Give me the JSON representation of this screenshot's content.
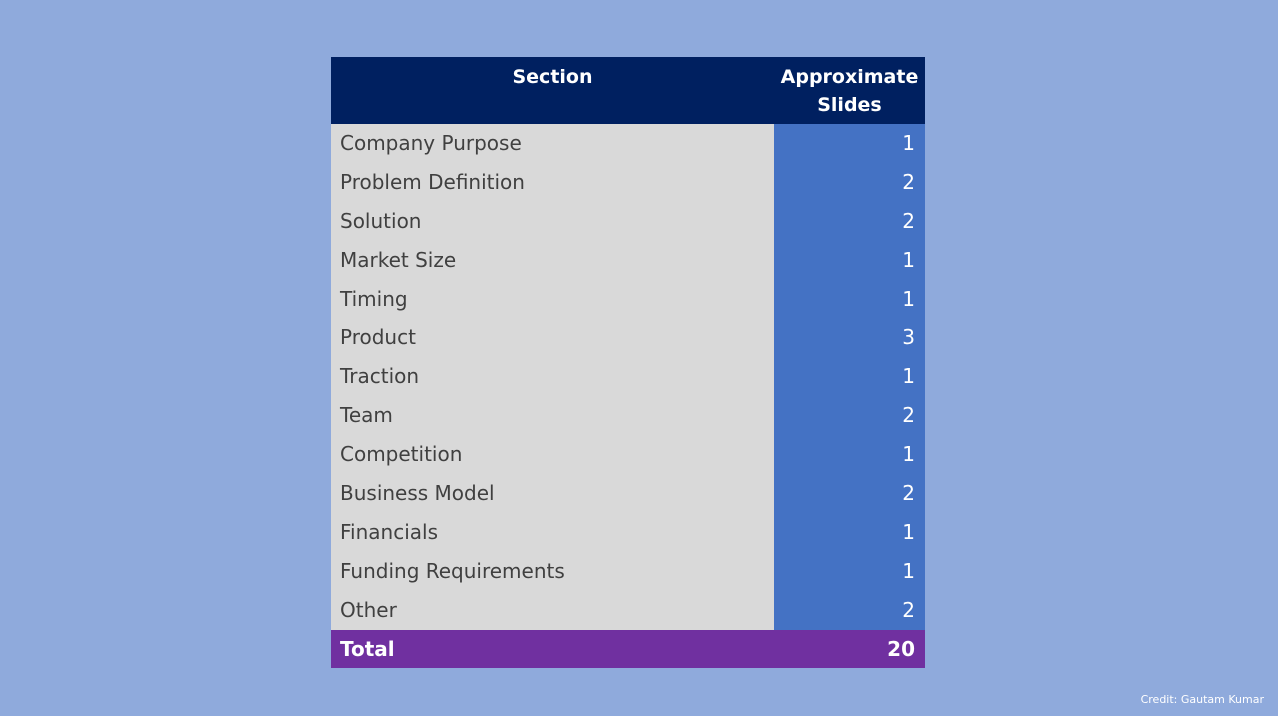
{
  "colors": {
    "background": "#8faadc",
    "header_bg": "#002060",
    "label_cell_bg": "#d9d9d9",
    "label_text": "#404040",
    "value_cell_bg": "#4472c4",
    "value_text": "#ffffff",
    "total_bg": "#7030a0"
  },
  "table": {
    "header": {
      "section": "Section",
      "slides": "Approximate Slides"
    },
    "rows": [
      {
        "section": "Company Purpose",
        "slides": "1"
      },
      {
        "section": "Problem Definition",
        "slides": "2"
      },
      {
        "section": "Solution",
        "slides": "2"
      },
      {
        "section": "Market Size",
        "slides": "1"
      },
      {
        "section": "Timing",
        "slides": "1"
      },
      {
        "section": "Product",
        "slides": "3"
      },
      {
        "section": "Traction",
        "slides": "1"
      },
      {
        "section": "Team",
        "slides": "2"
      },
      {
        "section": "Competition",
        "slides": "1"
      },
      {
        "section": "Business Model",
        "slides": "2"
      },
      {
        "section": "Financials",
        "slides": "1"
      },
      {
        "section": "Funding Requirements",
        "slides": "1"
      },
      {
        "section": "Other",
        "slides": "2"
      }
    ],
    "total": {
      "label": "Total",
      "value": "20"
    }
  },
  "credit": "Credit: Gautam Kumar"
}
